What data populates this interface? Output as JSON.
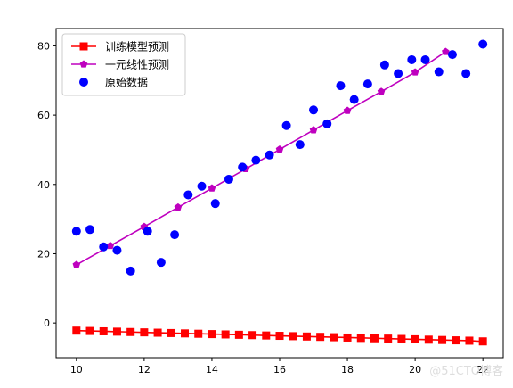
{
  "chart_data": {
    "type": "scatter",
    "xlim": [
      9.4,
      22.6
    ],
    "ylim": [
      -10,
      85
    ],
    "xticks": [
      10,
      12,
      14,
      16,
      18,
      20,
      22
    ],
    "yticks": [
      0,
      20,
      40,
      60,
      80
    ],
    "grid": false,
    "legend_position": "top-left",
    "series": [
      {
        "name": "训练模型预测",
        "type": "line",
        "marker": "square",
        "color": "#ff0000",
        "x": [
          10.0,
          10.4,
          10.8,
          11.2,
          11.6,
          12.0,
          12.4,
          12.8,
          13.2,
          13.6,
          14.0,
          14.4,
          14.8,
          15.2,
          15.6,
          16.0,
          16.4,
          16.8,
          17.2,
          17.6,
          18.0,
          18.4,
          18.8,
          19.2,
          19.6,
          20.0,
          20.4,
          20.8,
          21.2,
          21.6,
          22.0
        ],
        "y": [
          -2.2,
          -2.3,
          -2.4,
          -2.5,
          -2.6,
          -2.7,
          -2.8,
          -2.9,
          -3.0,
          -3.1,
          -3.2,
          -3.3,
          -3.4,
          -3.5,
          -3.6,
          -3.7,
          -3.8,
          -3.9,
          -4.0,
          -4.1,
          -4.2,
          -4.3,
          -4.4,
          -4.5,
          -4.6,
          -4.7,
          -4.8,
          -4.9,
          -5.0,
          -5.1,
          -5.3
        ]
      },
      {
        "name": "一元线性预测",
        "type": "line",
        "marker": "pentagon",
        "color": "#bf00bf",
        "x": [
          10.0,
          11.0,
          12.0,
          13.0,
          14.0,
          15.0,
          16.0,
          17.0,
          18.0,
          19.0,
          20.0,
          20.9
        ],
        "y": [
          16.8,
          22.3,
          27.8,
          33.4,
          38.9,
          44.5,
          50.1,
          55.7,
          61.3,
          66.8,
          72.4,
          78.3
        ]
      },
      {
        "name": "原始数据",
        "type": "scatter",
        "marker": "circle",
        "color": "#0000ff",
        "x": [
          10.0,
          10.4,
          10.8,
          11.2,
          11.6,
          12.1,
          12.5,
          12.9,
          13.3,
          13.7,
          14.1,
          14.5,
          14.9,
          15.3,
          15.7,
          16.2,
          16.6,
          17.0,
          17.4,
          17.8,
          18.2,
          18.6,
          19.1,
          19.5,
          19.9,
          20.3,
          20.7,
          21.1,
          21.5,
          22.0
        ],
        "y": [
          26.5,
          27.0,
          22.0,
          21.0,
          15.0,
          26.5,
          17.5,
          25.5,
          37.0,
          39.5,
          34.5,
          41.5,
          45.0,
          47.0,
          48.5,
          57.0,
          51.5,
          61.5,
          57.5,
          68.5,
          64.5,
          69.0,
          74.5,
          72.0,
          76.0,
          76.0,
          72.5,
          77.5,
          72.0,
          80.5
        ]
      }
    ]
  },
  "watermark": "@51CTO博客"
}
